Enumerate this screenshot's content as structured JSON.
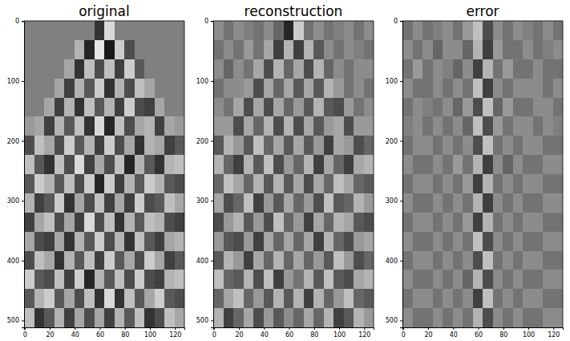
{
  "chart_data": [
    {
      "type": "heatmap",
      "title": "original",
      "xlim": [
        -0.5,
        127.5
      ],
      "ylim": [
        511.5,
        -0.5
      ],
      "xticks": [
        0,
        20,
        40,
        60,
        80,
        100,
        120
      ],
      "yticks": [
        0,
        100,
        200,
        300,
        400,
        500
      ],
      "color_range": [
        -1,
        1
      ],
      "cells": [
        [
          0,
          0,
          0,
          0,
          0,
          0,
          0,
          -0.6,
          0.7,
          0,
          0,
          0,
          0,
          0,
          0,
          0
        ],
        [
          0,
          0,
          0,
          0,
          0,
          0.4,
          -0.7,
          0.8,
          -0.8,
          0.6,
          -0.4,
          0,
          0,
          0,
          0,
          0
        ],
        [
          0,
          0,
          0,
          0,
          0.3,
          -0.6,
          0.5,
          -0.4,
          0.5,
          -0.5,
          0.6,
          -0.3,
          0,
          0,
          0,
          0
        ],
        [
          0,
          0,
          0,
          0.3,
          -0.5,
          0.4,
          -0.3,
          0.6,
          -0.6,
          0.4,
          -0.4,
          0.5,
          0.3,
          0,
          0,
          0
        ],
        [
          0,
          0,
          0.3,
          -0.5,
          0.4,
          -0.6,
          0.5,
          -0.3,
          0.4,
          -0.5,
          0.6,
          -0.4,
          -0.5,
          0.3,
          0,
          0
        ],
        [
          0.2,
          0.3,
          -0.5,
          0.4,
          -0.3,
          0.5,
          -0.6,
          0.7,
          -0.7,
          0.5,
          -0.4,
          0.3,
          0.4,
          -0.5,
          0.3,
          0.2
        ],
        [
          -0.4,
          0.5,
          0.3,
          -0.4,
          0.6,
          -0.3,
          0.4,
          -0.5,
          0.6,
          -0.4,
          0.3,
          -0.6,
          0.4,
          0.3,
          -0.5,
          -0.3
        ],
        [
          0.5,
          -0.3,
          -0.6,
          0.5,
          -0.4,
          0.7,
          -0.5,
          0.3,
          -0.4,
          0.5,
          -0.7,
          0.4,
          -0.3,
          -0.6,
          0.4,
          0.5
        ],
        [
          -0.3,
          0.6,
          0.4,
          -0.3,
          0.5,
          -0.4,
          0.6,
          -0.7,
          0.6,
          -0.5,
          0.4,
          -0.3,
          0.6,
          0.4,
          -0.3,
          -0.4
        ],
        [
          0.4,
          -0.5,
          -0.3,
          0.6,
          -0.6,
          0.3,
          -0.4,
          0.5,
          -0.5,
          0.3,
          -0.5,
          0.6,
          -0.4,
          -0.3,
          0.5,
          0.3
        ],
        [
          -0.5,
          0.3,
          0.5,
          -0.4,
          0.3,
          -0.5,
          0.7,
          -0.4,
          0.5,
          -0.6,
          0.4,
          -0.3,
          0.5,
          0.4,
          -0.4,
          -0.5
        ],
        [
          0.3,
          -0.4,
          -0.5,
          0.3,
          -0.6,
          0.4,
          -0.3,
          0.6,
          -0.4,
          0.4,
          -0.6,
          0.5,
          -0.3,
          -0.5,
          0.3,
          0.4
        ],
        [
          -0.4,
          0.5,
          0.3,
          -0.6,
          0.4,
          -0.3,
          0.5,
          -0.5,
          0.6,
          -0.3,
          0.3,
          -0.4,
          0.6,
          0.3,
          -0.5,
          -0.3
        ],
        [
          0.6,
          -0.3,
          -0.4,
          0.5,
          -0.5,
          0.6,
          -0.7,
          0.4,
          -0.3,
          0.5,
          -0.4,
          0.6,
          -0.4,
          -0.5,
          0.4,
          0.5
        ],
        [
          -0.3,
          0.4,
          0.6,
          -0.3,
          0.3,
          -0.4,
          0.5,
          -0.6,
          0.7,
          -0.6,
          0.5,
          -0.3,
          0.3,
          0.6,
          -0.3,
          -0.4
        ],
        [
          0.5,
          -0.6,
          -0.3,
          0.4,
          -0.5,
          0.3,
          -0.4,
          0.3,
          -0.5,
          0.4,
          -0.3,
          0.5,
          -0.6,
          -0.4,
          0.5,
          0.3
        ]
      ]
    },
    {
      "type": "heatmap",
      "title": "reconstruction",
      "xlim": [
        -0.5,
        127.5
      ],
      "ylim": [
        511.5,
        -0.5
      ],
      "xticks": [
        0,
        20,
        40,
        60,
        80,
        100,
        120
      ],
      "yticks": [
        0,
        100,
        200,
        300,
        400,
        500
      ],
      "color_range": [
        -1,
        1
      ],
      "cells": [
        [
          0.1,
          -0.1,
          0.1,
          0,
          -0.1,
          0.1,
          -0.2,
          -0.7,
          0.6,
          -0.1,
          0.1,
          -0.1,
          0,
          0.1,
          -0.1,
          0.1
        ],
        [
          -0.1,
          0.1,
          -0.1,
          0.2,
          -0.1,
          0.3,
          -0.5,
          0.4,
          -0.5,
          0.4,
          -0.3,
          0.1,
          -0.1,
          0.1,
          0,
          -0.1
        ],
        [
          0.1,
          -0.2,
          0.1,
          -0.1,
          0.3,
          -0.4,
          0.4,
          -0.2,
          0.3,
          -0.4,
          0.4,
          -0.2,
          0.1,
          -0.1,
          0.1,
          0.1
        ],
        [
          -0.1,
          0.1,
          0.1,
          0.2,
          -0.4,
          0.3,
          -0.2,
          0.3,
          -0.3,
          0.3,
          -0.3,
          0.4,
          0.2,
          -0.1,
          0.1,
          -0.1
        ],
        [
          0.1,
          -0.1,
          0.3,
          -0.4,
          0.3,
          -0.4,
          0.3,
          -0.2,
          0.2,
          -0.3,
          0.4,
          -0.3,
          -0.4,
          0.2,
          -0.1,
          0.1
        ],
        [
          0.2,
          0.2,
          -0.4,
          0.3,
          -0.2,
          0.4,
          -0.4,
          0.4,
          -0.4,
          0.3,
          -0.3,
          0.2,
          0.3,
          -0.4,
          0.2,
          0.2
        ],
        [
          -0.3,
          0.4,
          0.2,
          -0.3,
          0.5,
          -0.2,
          0.3,
          -0.3,
          0.3,
          -0.3,
          0.2,
          -0.5,
          0.3,
          0.2,
          -0.4,
          -0.2
        ],
        [
          0.4,
          -0.2,
          -0.5,
          0.4,
          -0.3,
          0.5,
          -0.4,
          0.2,
          -0.2,
          0.4,
          -0.5,
          0.3,
          -0.2,
          -0.5,
          0.3,
          0.4
        ],
        [
          -0.2,
          0.5,
          0.3,
          -0.2,
          0.4,
          -0.3,
          0.4,
          -0.3,
          0.3,
          -0.4,
          0.3,
          -0.2,
          0.5,
          0.3,
          -0.2,
          -0.3
        ],
        [
          0.3,
          -0.4,
          -0.2,
          0.5,
          -0.5,
          0.2,
          -0.3,
          0.3,
          -0.2,
          0.2,
          -0.4,
          0.5,
          -0.3,
          -0.2,
          0.4,
          0.2
        ],
        [
          -0.4,
          0.2,
          0.4,
          -0.3,
          0.2,
          -0.4,
          0.5,
          -0.2,
          0.2,
          -0.5,
          0.3,
          -0.2,
          0.4,
          0.3,
          -0.3,
          -0.4
        ],
        [
          0.2,
          -0.3,
          -0.4,
          0.2,
          -0.5,
          0.3,
          -0.2,
          0.3,
          -0.2,
          0.3,
          -0.5,
          0.4,
          -0.2,
          -0.4,
          0.2,
          0.3
        ],
        [
          -0.3,
          0.4,
          0.2,
          -0.5,
          0.3,
          -0.2,
          0.4,
          -0.2,
          0.3,
          -0.2,
          0.2,
          -0.3,
          0.5,
          0.2,
          -0.4,
          -0.2
        ],
        [
          0.5,
          -0.2,
          -0.3,
          0.4,
          -0.4,
          0.5,
          -0.5,
          0.2,
          -0.1,
          0.4,
          -0.3,
          0.5,
          -0.3,
          -0.4,
          0.3,
          0.4
        ],
        [
          -0.2,
          0.3,
          0.5,
          -0.2,
          0.2,
          -0.3,
          0.4,
          -0.3,
          0.4,
          -0.5,
          0.4,
          -0.2,
          0.2,
          0.5,
          -0.2,
          -0.3
        ],
        [
          0.4,
          -0.5,
          -0.2,
          0.3,
          -0.4,
          0.2,
          -0.3,
          0.1,
          -0.2,
          0.3,
          -0.2,
          0.4,
          -0.5,
          -0.3,
          0.4,
          0.2
        ]
      ]
    },
    {
      "type": "heatmap",
      "title": "error",
      "xlim": [
        -0.5,
        127.5
      ],
      "ylim": [
        511.5,
        -0.5
      ],
      "xticks": [
        0,
        20,
        40,
        60,
        80,
        100,
        120
      ],
      "yticks": [
        0,
        100,
        200,
        300,
        400,
        500
      ],
      "color_range": [
        -1,
        1
      ],
      "cells": [
        [
          -0.1,
          0.1,
          -0.1,
          0,
          0.1,
          -0.1,
          0.2,
          0.5,
          -0.4,
          0.1,
          -0.1,
          0.1,
          0,
          -0.1,
          0.1,
          -0.1
        ],
        [
          0.1,
          -0.1,
          0.1,
          -0.2,
          0.1,
          0.1,
          -0.2,
          0.4,
          -0.5,
          0.2,
          -0.1,
          -0.1,
          0.1,
          -0.1,
          0,
          0.1
        ],
        [
          -0.1,
          0.2,
          -0.1,
          0.1,
          0,
          -0.2,
          0.1,
          -0.5,
          0.4,
          -0.1,
          0.2,
          -0.1,
          -0.1,
          0.1,
          -0.1,
          -0.1
        ],
        [
          0.1,
          -0.1,
          -0.1,
          0.1,
          -0.1,
          0.1,
          -0.1,
          0.5,
          -0.5,
          0.1,
          -0.1,
          0.1,
          0.1,
          0.1,
          -0.1,
          0.1
        ],
        [
          -0.1,
          0.1,
          0,
          -0.1,
          0.1,
          -0.2,
          0.2,
          -0.4,
          0.5,
          -0.2,
          0.2,
          -0.1,
          -0.1,
          0.1,
          0.1,
          -0.1
        ],
        [
          0,
          0.1,
          -0.1,
          0.1,
          -0.1,
          0.1,
          -0.2,
          0.5,
          -0.4,
          0.2,
          -0.1,
          0.1,
          0.1,
          -0.1,
          0.1,
          0
        ],
        [
          -0.1,
          0.1,
          0.1,
          -0.1,
          0.1,
          -0.1,
          0.1,
          -0.4,
          0.5,
          -0.1,
          0.1,
          -0.1,
          0.1,
          0.1,
          -0.1,
          -0.1
        ],
        [
          0.1,
          -0.1,
          -0.1,
          0.1,
          -0.1,
          0.2,
          -0.1,
          0.4,
          -0.5,
          0.1,
          -0.2,
          0.1,
          -0.1,
          -0.1,
          0.1,
          0.1
        ],
        [
          -0.1,
          0.1,
          0.1,
          -0.1,
          0.1,
          -0.1,
          0.2,
          -0.5,
          0.4,
          -0.1,
          0.1,
          -0.1,
          0.1,
          0.1,
          -0.1,
          -0.1
        ],
        [
          0.1,
          -0.1,
          -0.1,
          0.1,
          -0.1,
          0.1,
          -0.1,
          0.4,
          -0.5,
          0.1,
          -0.1,
          0.1,
          -0.1,
          -0.1,
          0.1,
          0.1
        ],
        [
          -0.1,
          0.1,
          0.1,
          -0.1,
          0.1,
          -0.1,
          0.2,
          -0.5,
          0.4,
          -0.1,
          0.1,
          -0.1,
          0.1,
          0.1,
          -0.1,
          -0.1
        ],
        [
          0.1,
          -0.1,
          -0.1,
          0.1,
          -0.1,
          0.1,
          -0.1,
          0.5,
          -0.4,
          0.1,
          -0.1,
          0.1,
          -0.1,
          -0.1,
          0.1,
          0.1
        ],
        [
          -0.1,
          0.1,
          0.1,
          -0.1,
          0.1,
          -0.1,
          0.1,
          -0.4,
          0.5,
          -0.1,
          0.1,
          -0.1,
          0.1,
          0.1,
          -0.1,
          -0.1
        ],
        [
          0.1,
          -0.1,
          -0.1,
          0.1,
          -0.1,
          0.1,
          -0.2,
          0.4,
          -0.4,
          0.1,
          -0.1,
          0.1,
          -0.1,
          -0.1,
          0.1,
          0.1
        ],
        [
          -0.1,
          0.1,
          0.1,
          -0.1,
          0.1,
          -0.1,
          0.1,
          -0.5,
          0.5,
          -0.1,
          0.1,
          -0.1,
          0.1,
          0.1,
          -0.1,
          -0.1
        ],
        [
          0.1,
          -0.1,
          -0.1,
          0.1,
          -0.1,
          0.1,
          -0.1,
          0.4,
          -0.4,
          0.1,
          -0.1,
          0.1,
          -0.1,
          -0.1,
          0.1,
          0.1
        ]
      ]
    }
  ]
}
